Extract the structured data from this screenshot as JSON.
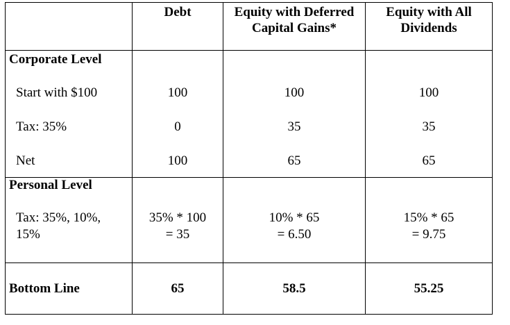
{
  "header": {
    "col1": "",
    "col2": "Debt",
    "col3": [
      "Equity with Deferred",
      "Capital Gains*"
    ],
    "col4": [
      "Equity with All",
      "Dividends"
    ]
  },
  "corporate": {
    "title": "Corporate Level",
    "rows": [
      {
        "label": "Start with $100",
        "debt": "100",
        "deferred": "100",
        "dividends": "100"
      },
      {
        "label": "Tax: 35%",
        "debt": "0",
        "deferred": "35",
        "dividends": "35"
      },
      {
        "label": "Net",
        "debt": "100",
        "deferred": "65",
        "dividends": "65"
      }
    ]
  },
  "personal": {
    "title": "Personal Level",
    "label": [
      "Tax: 35%, 10%,",
      "15%"
    ],
    "debt": [
      "35% * 100",
      "= 35"
    ],
    "deferred": [
      "10% * 65",
      "= 6.50"
    ],
    "dividends": [
      "15% * 65",
      "= 9.75"
    ]
  },
  "bottom": {
    "label": "Bottom Line",
    "debt": "65",
    "deferred": "58.5",
    "dividends": "55.25"
  }
}
